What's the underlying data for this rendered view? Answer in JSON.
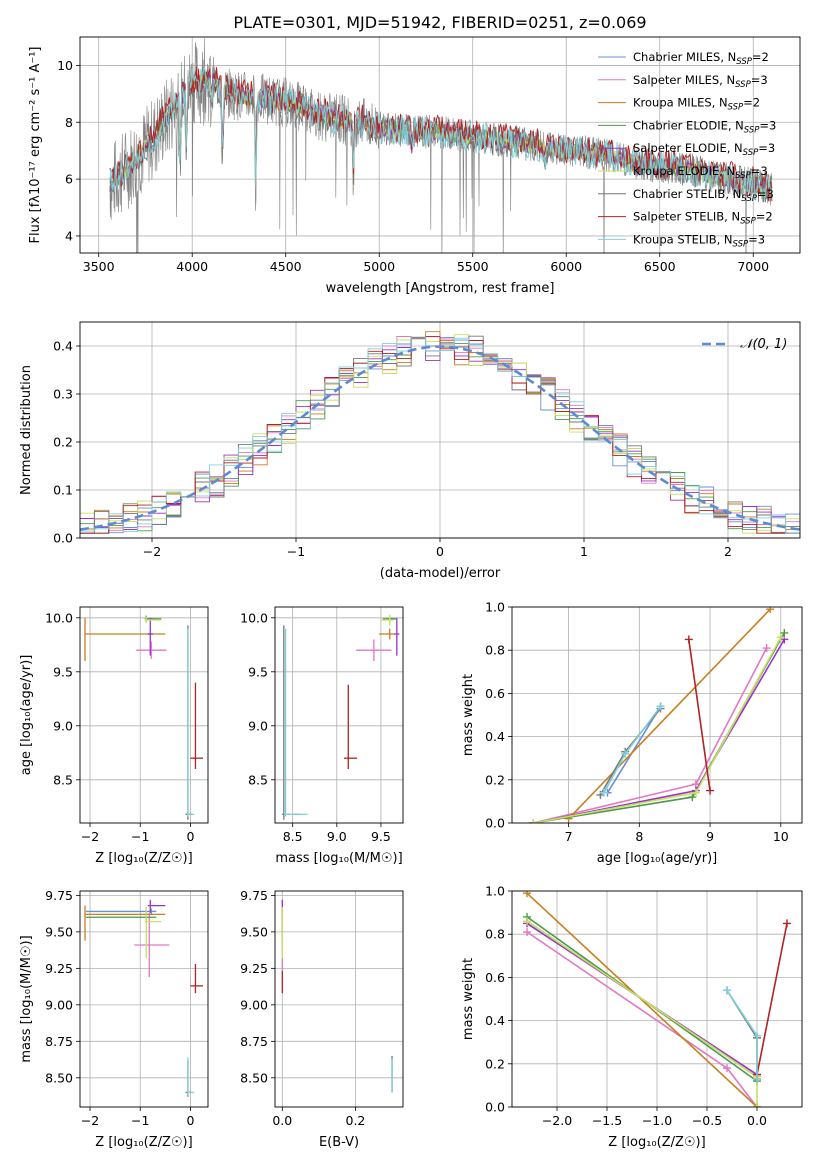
{
  "figure_title": "PLATE=0301, MJD=51942, FIBERID=0251, z=0.069",
  "colors": {
    "Chabrier MILES": "#6b8fd6",
    "Salpeter MILES": "#e377c2",
    "Kroupa MILES": "#c87f1e",
    "Chabrier ELODIE": "#4c9a4c",
    "Salpeter ELODIE": "#9932cc",
    "Kroupa ELODIE": "#c8e060",
    "Chabrier STELIB": "#777777",
    "Salpeter STELIB": "#b22222",
    "Kroupa STELIB": "#7fd0d8",
    "data": "#808080",
    "normal_curve": "#5b8bd6"
  },
  "chart_data": [
    {
      "id": "spectrum",
      "type": "line",
      "xlabel": "wavelength [Angstrom, rest frame]",
      "ylabel": "Flux [fλ10⁻¹⁷ erg cm⁻² s⁻¹ A⁻¹]",
      "xlim": [
        3400,
        7250
      ],
      "ylim": [
        3.4,
        11.0
      ],
      "xticks": [
        3500,
        4000,
        4500,
        5000,
        5500,
        6000,
        6500,
        7000
      ],
      "yticks": [
        4,
        6,
        8,
        10
      ],
      "grid": true,
      "legend_position": "upper right",
      "legend": [
        "Chabrier MILES, N_SSP=2",
        "Salpeter MILES, N_SSP=3",
        "Kroupa MILES, N_SSP=2",
        "Chabrier ELODIE, N_SSP=3",
        "Salpeter ELODIE, N_SSP=3",
        "Kroupa ELODIE, N_SSP=3",
        "Chabrier STELIB, N_SSP=3",
        "Salpeter STELIB, N_SSP=2",
        "Kroupa STELIB, N_SSP=3"
      ],
      "model_continuum": {
        "x": [
          3560,
          3700,
          3800,
          3900,
          4000,
          4100,
          4200,
          4300,
          4400,
          4500,
          4600,
          4700,
          4800,
          4900,
          5000,
          5200,
          5400,
          5600,
          5800,
          6000,
          6200,
          6400,
          6600,
          6800,
          7000,
          7100
        ],
        "y": [
          5.8,
          6.7,
          7.5,
          8.5,
          9.4,
          9.5,
          9.0,
          8.9,
          8.8,
          8.7,
          8.5,
          8.2,
          8.1,
          8.0,
          7.8,
          7.7,
          7.6,
          7.4,
          7.2,
          7.0,
          6.9,
          6.5,
          6.4,
          6.1,
          5.8,
          5.6
        ]
      },
      "absorption_features": [
        {
          "x": 3934,
          "depth": 2.6
        },
        {
          "x": 3969,
          "depth": 2.2
        },
        {
          "x": 4102,
          "depth": 1.0
        },
        {
          "x": 4162,
          "depth": 3.0
        },
        {
          "x": 4340,
          "depth": 3.3
        },
        {
          "x": 4861,
          "depth": 2.4
        },
        {
          "x": 5175,
          "depth": 0.6
        },
        {
          "x": 5890,
          "depth": 0.6
        }
      ]
    },
    {
      "id": "residuals",
      "type": "histogram",
      "xlabel": "(data-model)/error",
      "ylabel": "Normed distribution",
      "xlim": [
        -2.5,
        2.5
      ],
      "ylim": [
        0.0,
        0.45
      ],
      "xticks": [
        -2,
        -1,
        0,
        1,
        2
      ],
      "yticks": [
        0.0,
        0.1,
        0.2,
        0.3,
        0.4
      ],
      "grid": true,
      "bin_width": 0.1,
      "legend_position": "upper right",
      "legend": [
        "𝒩(0, 1)"
      ],
      "normal_curve": {
        "mean": 0,
        "sigma": 1
      }
    },
    {
      "id": "age_vs_Z",
      "type": "errorbar",
      "xlabel": "Z [log₁₀(Z/Z☉)]",
      "ylabel": "age  [log₁₀(age/yr)]",
      "xlim": [
        -2.2,
        0.35
      ],
      "ylim": [
        8.1,
        10.1
      ],
      "xticks": [
        -2,
        -1,
        0
      ],
      "yticks": [
        8.5,
        9.0,
        9.5,
        10.0
      ],
      "grid": true,
      "points": [
        {
          "model": "Chabrier MILES",
          "x": -0.78,
          "y": 9.99,
          "xerr": [
            0.1,
            0.1
          ],
          "yerr": [
            0.01,
            0.01
          ]
        },
        {
          "model": "Salpeter MILES",
          "x": -0.78,
          "y": 9.7,
          "xerr": [
            0.3,
            0.3
          ],
          "yerr": [
            0.08,
            0.08
          ]
        },
        {
          "model": "Kroupa MILES",
          "x": -2.1,
          "y": 9.85,
          "xerr": [
            0.0,
            1.6
          ],
          "yerr": [
            0.25,
            0.15
          ]
        },
        {
          "model": "Chabrier ELODIE",
          "x": -0.88,
          "y": 9.99,
          "xerr": [
            0.03,
            0.3
          ],
          "yerr": [
            0.03,
            0.03
          ]
        },
        {
          "model": "Salpeter ELODIE",
          "x": -0.8,
          "y": 9.85,
          "xerr": [
            0.05,
            0.05
          ],
          "yerr": [
            0.2,
            0.15
          ]
        },
        {
          "model": "Kroupa ELODIE",
          "x": -0.88,
          "y": 9.98,
          "xerr": [
            0.03,
            0.3
          ],
          "yerr": [
            0.03,
            0.03
          ]
        },
        {
          "model": "Chabrier STELIB",
          "x": -0.05,
          "y": 8.18,
          "xerr": [
            0.05,
            0.1
          ],
          "yerr": [
            0.05,
            1.75
          ]
        },
        {
          "model": "Salpeter STELIB",
          "x": 0.1,
          "y": 8.7,
          "xerr": [
            0.1,
            0.15
          ],
          "yerr": [
            0.1,
            0.7
          ]
        },
        {
          "model": "Kroupa STELIB",
          "x": -0.05,
          "y": 8.18,
          "xerr": [
            0.02,
            0.12
          ],
          "yerr": [
            0.02,
            1.72
          ]
        }
      ]
    },
    {
      "id": "age_vs_mass",
      "type": "errorbar",
      "xlabel": "mass [log₁₀(M/M☉)]",
      "ylabel": "",
      "xlim": [
        8.3,
        9.75
      ],
      "ylim": [
        8.1,
        10.1
      ],
      "xticks": [
        8.5,
        9.0,
        9.5
      ],
      "yticks": [
        8.5,
        9.0,
        9.5,
        10.0
      ],
      "grid": true,
      "points": [
        {
          "model": "Chabrier MILES",
          "x": 9.62,
          "y": 9.99,
          "xerr": [
            0.05,
            0.05
          ],
          "yerr": [
            0.01,
            0.01
          ]
        },
        {
          "model": "Salpeter MILES",
          "x": 9.42,
          "y": 9.7,
          "xerr": [
            0.2,
            0.2
          ],
          "yerr": [
            0.1,
            0.1
          ]
        },
        {
          "model": "Kroupa MILES",
          "x": 9.6,
          "y": 9.85,
          "xerr": [
            0.12,
            0.05
          ],
          "yerr": [
            0.05,
            0.05
          ]
        },
        {
          "model": "Chabrier ELODIE",
          "x": 9.62,
          "y": 9.99,
          "xerr": [
            0.1,
            0.05
          ],
          "yerr": [
            0.01,
            0.01
          ]
        },
        {
          "model": "Salpeter ELODIE",
          "x": 9.68,
          "y": 9.85,
          "xerr": [
            0.03,
            0.03
          ],
          "yerr": [
            0.2,
            0.15
          ]
        },
        {
          "model": "Kroupa ELODIE",
          "x": 9.6,
          "y": 9.98,
          "xerr": [
            0.1,
            0.05
          ],
          "yerr": [
            0.05,
            0.05
          ]
        },
        {
          "model": "Chabrier STELIB",
          "x": 8.4,
          "y": 8.18,
          "xerr": [
            0.02,
            0.2
          ],
          "yerr": [
            0.05,
            1.75
          ]
        },
        {
          "model": "Salpeter STELIB",
          "x": 9.13,
          "y": 8.7,
          "xerr": [
            0.05,
            0.1
          ],
          "yerr": [
            0.1,
            0.68
          ]
        },
        {
          "model": "Kroupa STELIB",
          "x": 8.42,
          "y": 8.18,
          "xerr": [
            0.02,
            0.25
          ],
          "yerr": [
            0.02,
            1.72
          ]
        }
      ]
    },
    {
      "id": "mass_weight_vs_age",
      "type": "line",
      "xlabel": "age  [log₁₀(age/yr)]",
      "ylabel": "mass weight",
      "xlim": [
        6.2,
        10.3
      ],
      "ylim": [
        0.0,
        1.0
      ],
      "xticks": [
        7,
        8,
        9,
        10
      ],
      "yticks": [
        0.0,
        0.2,
        0.4,
        0.6,
        0.8,
        1.0
      ],
      "grid": true,
      "series": [
        {
          "model": "Chabrier MILES",
          "x": [
            7.55,
            8.3
          ],
          "y": [
            0.14,
            0.54
          ]
        },
        {
          "model": "Salpeter MILES",
          "x": [
            6.5,
            8.8,
            9.8
          ],
          "y": [
            0.0,
            0.18,
            0.81
          ]
        },
        {
          "model": "Kroupa MILES",
          "x": [
            7.0,
            9.85
          ],
          "y": [
            0.02,
            0.99
          ]
        },
        {
          "model": "Chabrier ELODIE",
          "x": [
            6.5,
            8.75,
            10.05
          ],
          "y": [
            0.0,
            0.12,
            0.88
          ]
        },
        {
          "model": "Salpeter ELODIE",
          "x": [
            6.5,
            8.8,
            10.05
          ],
          "y": [
            0.0,
            0.15,
            0.85
          ]
        },
        {
          "model": "Kroupa ELODIE",
          "x": [
            6.5,
            8.8,
            10.0
          ],
          "y": [
            0.0,
            0.14,
            0.86
          ]
        },
        {
          "model": "Chabrier STELIB",
          "x": [
            7.45,
            7.8,
            8.3
          ],
          "y": [
            0.13,
            0.33,
            0.53
          ]
        },
        {
          "model": "Salpeter STELIB",
          "x": [
            8.7,
            9.0
          ],
          "y": [
            0.85,
            0.15
          ]
        },
        {
          "model": "Kroupa STELIB",
          "x": [
            7.5,
            7.8,
            8.3
          ],
          "y": [
            0.14,
            0.32,
            0.54
          ]
        }
      ]
    },
    {
      "id": "mass_vs_Z",
      "type": "errorbar",
      "xlabel": "Z [log₁₀(Z/Z☉)]",
      "ylabel": "mass [log₁₀(M/M☉)]",
      "xlim": [
        -2.2,
        0.35
      ],
      "ylim": [
        8.3,
        9.78
      ],
      "xticks": [
        -2,
        -1,
        0
      ],
      "yticks": [
        8.5,
        8.75,
        9.0,
        9.25,
        9.5,
        9.75
      ],
      "grid": true,
      "points": [
        {
          "model": "Chabrier MILES",
          "x": -0.78,
          "y": 9.64,
          "xerr": [
            1.3,
            0.1
          ],
          "yerr": [
            0.02,
            0.02
          ]
        },
        {
          "model": "Salpeter MILES",
          "x": -0.82,
          "y": 9.41,
          "xerr": [
            0.3,
            0.4
          ],
          "yerr": [
            0.22,
            0.22
          ]
        },
        {
          "model": "Kroupa MILES",
          "x": -2.1,
          "y": 9.62,
          "xerr": [
            0.0,
            1.6
          ],
          "yerr": [
            0.18,
            0.06
          ]
        },
        {
          "model": "Chabrier ELODIE",
          "x": -0.88,
          "y": 9.6,
          "xerr": [
            1.2,
            0.2
          ],
          "yerr": [
            0.03,
            0.03
          ]
        },
        {
          "model": "Salpeter ELODIE",
          "x": -0.8,
          "y": 9.68,
          "xerr": [
            0.05,
            0.3
          ],
          "yerr": [
            0.05,
            0.04
          ]
        },
        {
          "model": "Kroupa ELODIE",
          "x": -0.88,
          "y": 9.57,
          "xerr": [
            0.03,
            0.3
          ],
          "yerr": [
            0.25,
            0.1
          ]
        },
        {
          "model": "Chabrier STELIB",
          "x": -0.05,
          "y": 8.4,
          "xerr": [
            0.05,
            0.1
          ],
          "yerr": [
            0.03,
            0.22
          ]
        },
        {
          "model": "Salpeter STELIB",
          "x": 0.1,
          "y": 9.13,
          "xerr": [
            0.1,
            0.15
          ],
          "yerr": [
            0.05,
            0.15
          ]
        },
        {
          "model": "Kroupa STELIB",
          "x": -0.05,
          "y": 8.4,
          "xerr": [
            0.02,
            0.12
          ],
          "yerr": [
            0.02,
            0.24
          ]
        }
      ]
    },
    {
      "id": "mass_vs_ebv",
      "type": "errorbar",
      "xlabel": "E(B-V)",
      "ylabel": "",
      "xlim": [
        -0.02,
        0.33
      ],
      "ylim": [
        8.3,
        9.78
      ],
      "xticks": [
        0.0,
        0.2
      ],
      "yticks": [
        8.5,
        8.75,
        9.0,
        9.25,
        9.5,
        9.75
      ],
      "grid": true,
      "points": [
        {
          "model": "Chabrier MILES",
          "x": 0.0,
          "y": 9.64,
          "xerr": [
            0,
            0
          ],
          "yerr": [
            0.02,
            0.02
          ]
        },
        {
          "model": "Salpeter MILES",
          "x": 0.0,
          "y": 9.41,
          "xerr": [
            0,
            0
          ],
          "yerr": [
            0.2,
            0.2
          ]
        },
        {
          "model": "Kroupa MILES",
          "x": 0.0,
          "y": 9.62,
          "xerr": [
            0,
            0
          ],
          "yerr": [
            0.15,
            0.05
          ]
        },
        {
          "model": "Chabrier ELODIE",
          "x": 0.0,
          "y": 9.6,
          "xerr": [
            0,
            0
          ],
          "yerr": [
            0.03,
            0.03
          ]
        },
        {
          "model": "Salpeter ELODIE",
          "x": 0.0,
          "y": 9.68,
          "xerr": [
            0,
            0
          ],
          "yerr": [
            0.05,
            0.04
          ]
        },
        {
          "model": "Kroupa ELODIE",
          "x": 0.0,
          "y": 9.57,
          "xerr": [
            0,
            0
          ],
          "yerr": [
            0.25,
            0.1
          ]
        },
        {
          "model": "Chabrier STELIB",
          "x": 0.3,
          "y": 8.45,
          "xerr": [
            0,
            0
          ],
          "yerr": [
            0.05,
            0.2
          ]
        },
        {
          "model": "Salpeter STELIB",
          "x": 0.0,
          "y": 9.13,
          "xerr": [
            0,
            0
          ],
          "yerr": [
            0.05,
            0.1
          ]
        },
        {
          "model": "Kroupa STELIB",
          "x": 0.3,
          "y": 8.45,
          "xerr": [
            0,
            0
          ],
          "yerr": [
            0.05,
            0.18
          ]
        }
      ]
    },
    {
      "id": "mass_weight_vs_Z",
      "type": "line",
      "xlabel": "Z [log₁₀(Z/Z☉)]",
      "ylabel": "mass weight",
      "xlim": [
        -2.45,
        0.45
      ],
      "ylim": [
        0.0,
        1.0
      ],
      "xticks": [
        -2.0,
        -1.5,
        -1.0,
        -0.5,
        0.0
      ],
      "yticks": [
        0.0,
        0.2,
        0.4,
        0.6,
        0.8,
        1.0
      ],
      "grid": true,
      "series": [
        {
          "model": "Chabrier MILES",
          "x": [
            -2.3,
            0.0
          ],
          "y": [
            0.86,
            0.14
          ]
        },
        {
          "model": "Salpeter MILES",
          "x": [
            -2.3,
            -0.3,
            0.0
          ],
          "y": [
            0.81,
            0.18,
            0.0
          ]
        },
        {
          "model": "Kroupa MILES",
          "x": [
            -2.3,
            0.0
          ],
          "y": [
            0.99,
            0.0
          ]
        },
        {
          "model": "Chabrier ELODIE",
          "x": [
            -2.3,
            0.0
          ],
          "y": [
            0.88,
            0.12
          ]
        },
        {
          "model": "Salpeter ELODIE",
          "x": [
            -2.3,
            0.0
          ],
          "y": [
            0.85,
            0.15
          ]
        },
        {
          "model": "Kroupa ELODIE",
          "x": [
            -2.3,
            0.0,
            0.0
          ],
          "y": [
            0.86,
            0.14,
            0.0
          ]
        },
        {
          "model": "Chabrier STELIB",
          "x": [
            -0.3,
            0.0,
            0.0
          ],
          "y": [
            0.54,
            0.32,
            0.13
          ]
        },
        {
          "model": "Salpeter STELIB",
          "x": [
            0.0,
            0.3
          ],
          "y": [
            0.15,
            0.85
          ]
        },
        {
          "model": "Kroupa STELIB",
          "x": [
            -0.3,
            0.0,
            0.0
          ],
          "y": [
            0.54,
            0.33,
            0.13
          ]
        }
      ]
    }
  ]
}
